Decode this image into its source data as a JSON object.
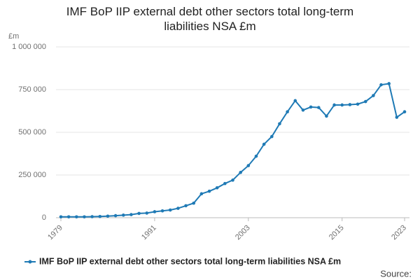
{
  "chart_data": {
    "type": "line",
    "title": "IMF BoP IIP external debt other sectors total long-term liabilities NSA £m",
    "y_unit": "£m",
    "source": "Source:",
    "x": [
      1979,
      1980,
      1981,
      1982,
      1983,
      1984,
      1985,
      1986,
      1987,
      1988,
      1989,
      1990,
      1991,
      1992,
      1993,
      1994,
      1995,
      1996,
      1997,
      1998,
      1999,
      2000,
      2001,
      2002,
      2003,
      2004,
      2005,
      2006,
      2007,
      2008,
      2009,
      2010,
      2011,
      2012,
      2013,
      2014,
      2015,
      2016,
      2017,
      2018,
      2019,
      2020,
      2021,
      2022,
      2023
    ],
    "series": [
      {
        "name": "IMF BoP IIP external debt other sectors total long-term liabilities NSA £m",
        "color": "#1f7ab5",
        "values": [
          5000,
          5000,
          5000,
          5000,
          6000,
          7000,
          9000,
          12000,
          15000,
          18000,
          25000,
          27000,
          35000,
          40000,
          45000,
          55000,
          70000,
          85000,
          140000,
          155000,
          175000,
          200000,
          220000,
          265000,
          305000,
          360000,
          430000,
          475000,
          550000,
          620000,
          685000,
          630000,
          648000,
          645000,
          595000,
          660000,
          660000,
          662000,
          665000,
          680000,
          715000,
          778000,
          785000,
          588000,
          620000
        ]
      }
    ],
    "xlim": [
      1979,
      2023
    ],
    "xticks": [
      1979,
      1991,
      2003,
      2015,
      2023
    ],
    "ylim": [
      0,
      1000000
    ],
    "yticks": [
      0,
      {
        "value": 250000,
        "label": "250 000"
      },
      {
        "value": 500000,
        "label": "500 000"
      },
      {
        "value": 750000,
        "label": "750 000"
      },
      {
        "value": 1000000,
        "label": "1 000 000"
      }
    ],
    "grid": true
  }
}
